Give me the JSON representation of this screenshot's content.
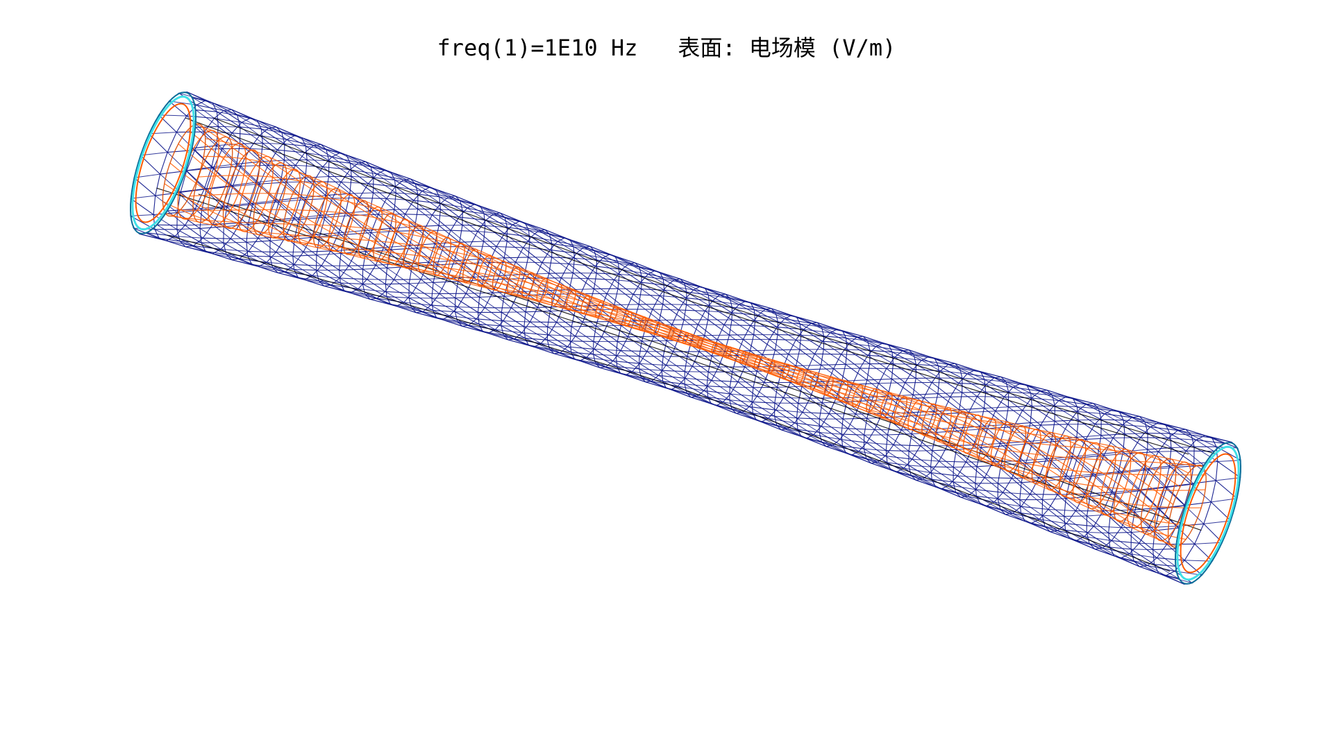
{
  "plot": {
    "title": "freq(1)=1E10 Hz   表面: 电场模 (V/m)"
  },
  "colors": {
    "background": "#ffffff",
    "mesh": "#10198c",
    "field_wire": "#ff5a00",
    "field_wire_dark": "#d84a00",
    "edge_lines": "#000000",
    "port_ring_inner": "#40e0e8",
    "port_ring_outer": "#0a6f9a"
  },
  "model": {
    "shape": "tapered coaxial waveguide",
    "render_style": "wireframe",
    "field_quantity": "电场模"
  }
}
